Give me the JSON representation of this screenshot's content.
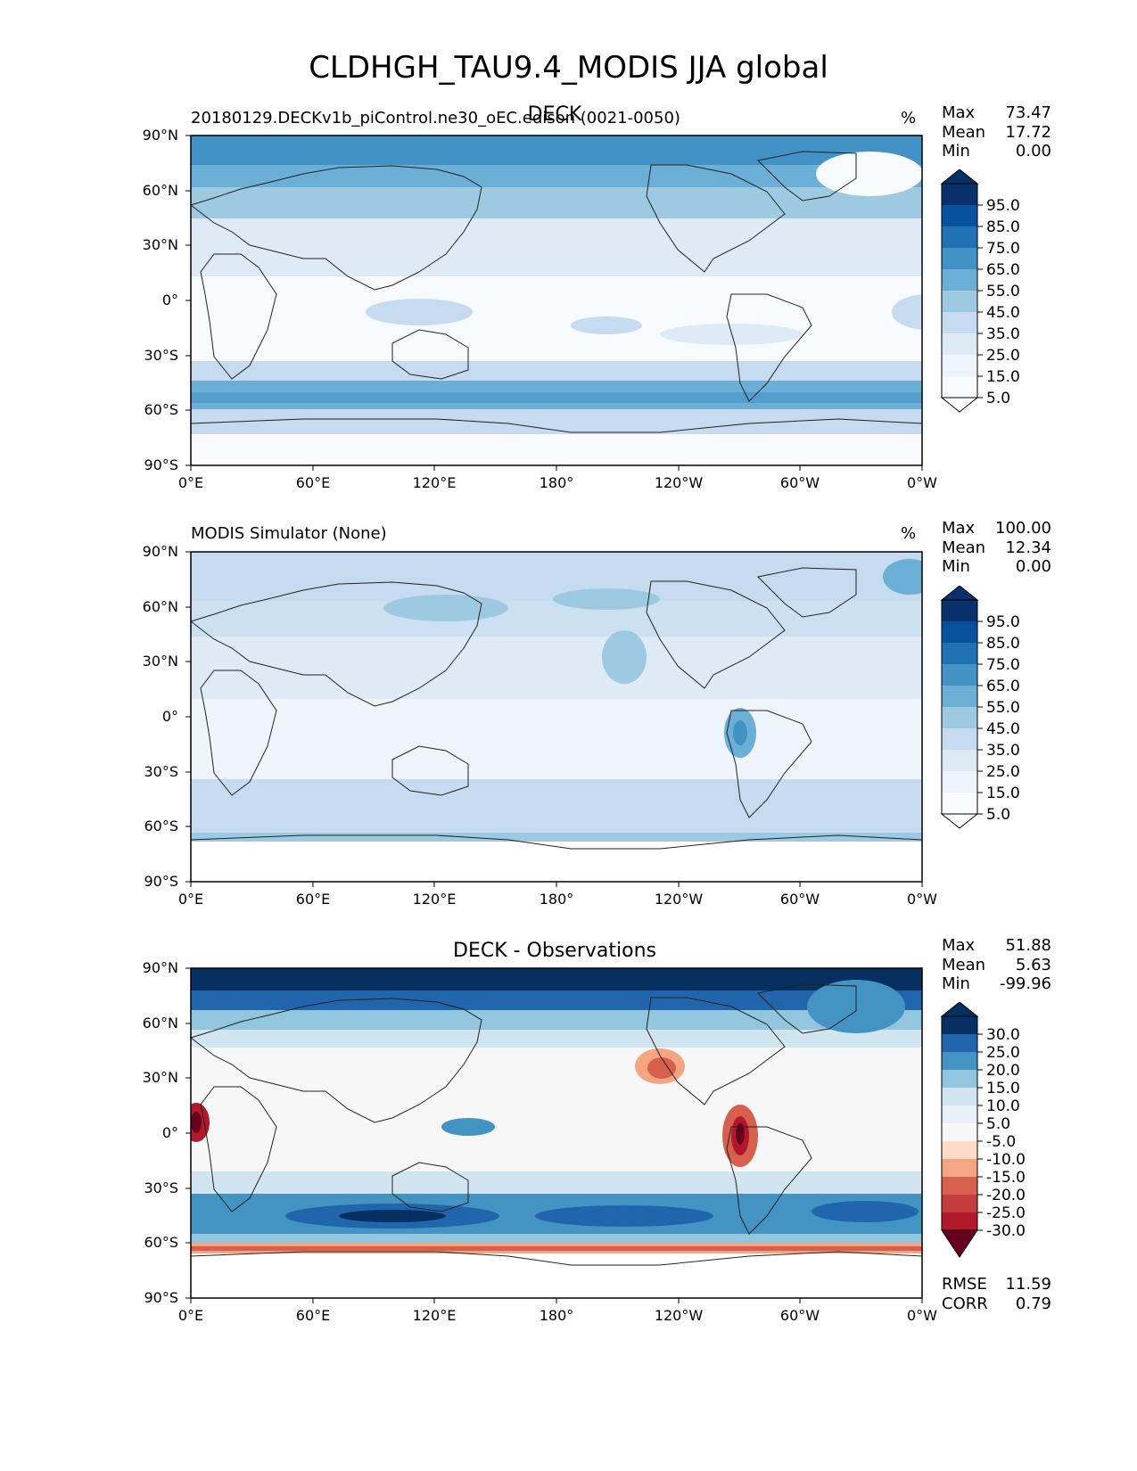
{
  "figure": {
    "title": "CLDHGH_TAU9.4_MODIS JJA global"
  },
  "panels": [
    {
      "left_title": "20180129.DECKv1b_piControl.ne30_oEC.edison (0021-0050)",
      "center_title": "DECK",
      "units": "%",
      "stats": {
        "max_label": "Max",
        "max": "73.47",
        "mean_label": "Mean",
        "mean": "17.72",
        "min_label": "Min",
        "min": "0.00"
      },
      "colorbar": {
        "labels": [
          "95.0",
          "85.0",
          "75.0",
          "65.0",
          "55.0",
          "45.0",
          "35.0",
          "25.0",
          "15.0",
          "5.0"
        ]
      }
    },
    {
      "left_title": "MODIS Simulator (None)",
      "center_title": "",
      "units": "%",
      "stats": {
        "max_label": "Max",
        "max": "100.00",
        "mean_label": "Mean",
        "mean": "12.34",
        "min_label": "Min",
        "min": "0.00"
      },
      "colorbar": {
        "labels": [
          "95.0",
          "85.0",
          "75.0",
          "65.0",
          "55.0",
          "45.0",
          "35.0",
          "25.0",
          "15.0",
          "5.0"
        ]
      }
    },
    {
      "left_title": "",
      "center_title": "DECK - Observations",
      "units": "",
      "stats": {
        "max_label": "Max",
        "max": "51.88",
        "mean_label": "Mean",
        "mean": "5.63",
        "min_label": "Min",
        "min": "-99.96"
      },
      "colorbar": {
        "labels": [
          "30.0",
          "25.0",
          "20.0",
          "15.0",
          "10.0",
          "5.0",
          "-5.0",
          "-10.0",
          "-15.0",
          "-20.0",
          "-25.0",
          "-30.0"
        ]
      },
      "metrics": {
        "rmse_label": "RMSE",
        "rmse": "11.59",
        "corr_label": "CORR",
        "corr": "0.79"
      }
    }
  ],
  "axes": {
    "x_ticks": [
      "0°E",
      "60°E",
      "120°E",
      "180°",
      "120°W",
      "60°W",
      "0°W"
    ],
    "y_ticks": [
      "90°N",
      "60°N",
      "30°N",
      "0°",
      "30°S",
      "60°S",
      "90°S"
    ]
  },
  "colors": {
    "blues": [
      "#f7fbff",
      "#deebf7",
      "#c6dbef",
      "#9ecae1",
      "#6baed6",
      "#4292c6",
      "#2171b5",
      "#08519c",
      "#08306b"
    ],
    "diverging": [
      "#67001f",
      "#b2182b",
      "#d6604d",
      "#f4a582",
      "#fddbc7",
      "#f7f7f7",
      "#d1e5f0",
      "#92c5de",
      "#4393c3",
      "#2166ac",
      "#053061"
    ],
    "land_outline": "#222222"
  }
}
